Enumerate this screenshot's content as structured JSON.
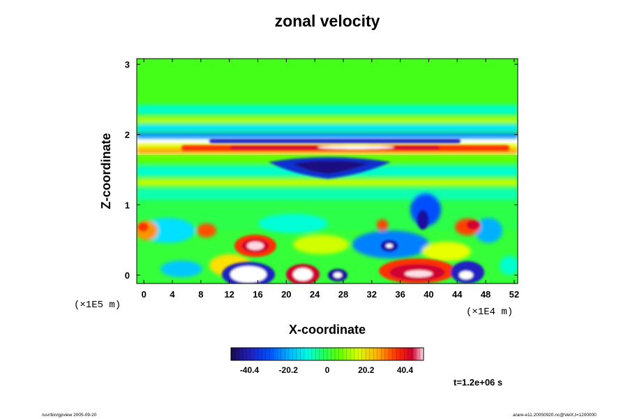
{
  "chart_data": {
    "type": "heatmap",
    "title": "zonal velocity",
    "xlabel": "X-coordinate",
    "ylabel": "Z-coordinate",
    "x_unit": "(×1E4 m)",
    "y_unit": "(×1E5 m)",
    "xlim": [
      -1,
      52.5
    ],
    "ylim": [
      -0.12,
      3.08
    ],
    "x_ticks": [
      "0",
      "4",
      "8",
      "12",
      "16",
      "20",
      "24",
      "28",
      "32",
      "36",
      "40",
      "44",
      "48",
      "52"
    ],
    "x_tick_values": [
      0,
      4,
      8,
      12,
      16,
      20,
      24,
      28,
      32,
      36,
      40,
      44,
      48,
      52
    ],
    "y_ticks": [
      "0",
      "1",
      "2",
      "3"
    ],
    "y_tick_values": [
      0,
      1,
      2,
      3
    ],
    "colorbar": {
      "min": -50,
      "max": 50,
      "tick_labels": [
        "-40.4",
        "-20.2",
        "0",
        "20.2",
        "40.4"
      ],
      "tick_values": [
        -40.4,
        -20.2,
        0,
        20.2,
        40.4
      ]
    },
    "field_features": [
      {
        "x": 26,
        "z": 1.87,
        "value": -30
      },
      {
        "x": 28,
        "z": 1.78,
        "value": 30
      },
      {
        "x": 26,
        "z": 1.5,
        "value": -28
      },
      {
        "x": 15,
        "z": 0.45,
        "value": 45
      },
      {
        "x": 15,
        "z": 0.0,
        "value": -60
      },
      {
        "x": 22,
        "z": 0.0,
        "value": 55
      },
      {
        "x": 27,
        "z": 0.0,
        "value": -45
      },
      {
        "x": 37,
        "z": 0.05,
        "value": 50
      },
      {
        "x": 45,
        "z": 0.0,
        "value": -40
      },
      {
        "x": 34,
        "z": 0.45,
        "value": -42
      },
      {
        "x": 3,
        "z": 0.5,
        "value": 30
      },
      {
        "x": 10,
        "z": 0.65,
        "value": 28
      },
      {
        "x": 46,
        "z": 0.7,
        "value": 30
      },
      {
        "x": 39,
        "z": 0.8,
        "value": -30
      }
    ]
  },
  "annotations": {
    "time": "t=1.2e+06 s",
    "footer_left": "/usr/bin/gpview 2005-09-20",
    "footer_right": "arare-e11.20050920.nc@VelX,t=1200000"
  },
  "colors": {
    "background": "#ffffff",
    "frame": "#000000",
    "palette": [
      "#1a0a50",
      "#2020c0",
      "#0050ff",
      "#00b0ff",
      "#00ffe0",
      "#20ff60",
      "#60ff00",
      "#d8ff00",
      "#ffb000",
      "#ff3000",
      "#d00030",
      "#ffffff"
    ]
  }
}
